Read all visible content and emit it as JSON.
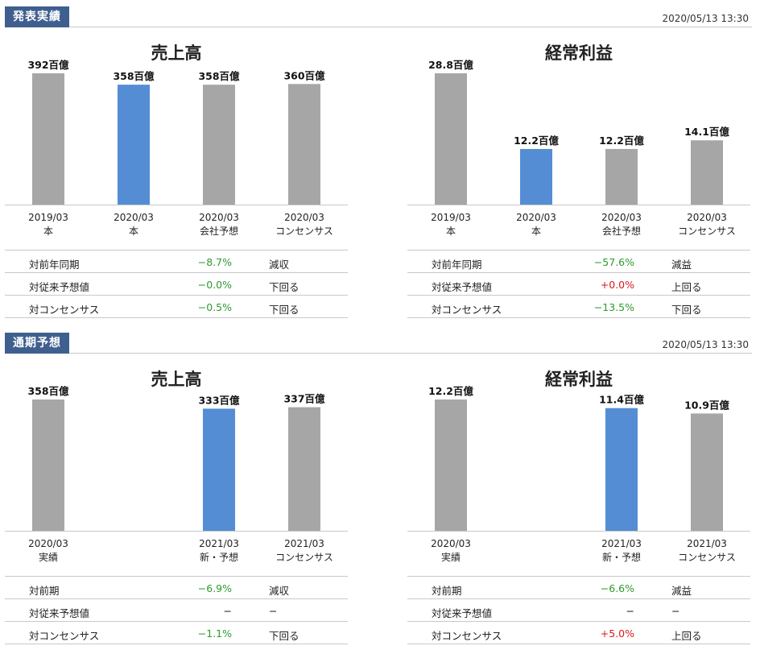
{
  "sections": [
    {
      "tag": "発表実績",
      "date": "2020/05/13 13:30",
      "panels": [
        {
          "title": "売上高",
          "unit": "百億",
          "metrics": [
            {
              "label": "対前年同期",
              "value": "−8.7%",
              "sign": "neg",
              "note": "減収"
            },
            {
              "label": "対従来予想値",
              "value": "−0.0%",
              "sign": "neg",
              "note": "下回る"
            },
            {
              "label": "対コンセンサス",
              "value": "−0.5%",
              "sign": "neg",
              "note": "下回る"
            }
          ]
        },
        {
          "title": "経常利益",
          "unit": "百億",
          "metrics": [
            {
              "label": "対前年同期",
              "value": "−57.6%",
              "sign": "neg",
              "note": "減益"
            },
            {
              "label": "対従来予想値",
              "value": "+0.0%",
              "sign": "pos",
              "note": "上回る"
            },
            {
              "label": "対コンセンサス",
              "value": "−13.5%",
              "sign": "neg",
              "note": "下回る"
            }
          ]
        }
      ]
    },
    {
      "tag": "通期予想",
      "date": "2020/05/13 13:30",
      "panels": [
        {
          "title": "売上高",
          "unit": "百億",
          "metrics": [
            {
              "label": "対前期",
              "value": "−6.9%",
              "sign": "neg",
              "note": "減収"
            },
            {
              "label": "対従来予想値",
              "value": "−",
              "sign": "neu",
              "note": "−"
            },
            {
              "label": "対コンセンサス",
              "value": "−1.1%",
              "sign": "neg",
              "note": "下回る"
            }
          ]
        },
        {
          "title": "経常利益",
          "unit": "百億",
          "metrics": [
            {
              "label": "対前期",
              "value": "−6.6%",
              "sign": "neg",
              "note": "減益"
            },
            {
              "label": "対従来予想値",
              "value": "−",
              "sign": "neu",
              "note": "−"
            },
            {
              "label": "対コンセンサス",
              "value": "+5.0%",
              "sign": "pos",
              "note": "上回る"
            }
          ]
        }
      ]
    }
  ],
  "colors": {
    "bar_gray": "#a6a6a6",
    "bar_blue": "#548dd4",
    "header_bg": "#3f5f8f",
    "negative": "#2e9a2e",
    "positive": "#d81b1b"
  },
  "chart_data": [
    {
      "type": "bar",
      "title": "売上高",
      "unit": "百億",
      "categories": [
        [
          "2019/03",
          "本"
        ],
        [
          "2020/03",
          "本"
        ],
        [
          "2020/03",
          "会社予想"
        ],
        [
          "2020/03",
          "コンセンサス"
        ]
      ],
      "values": [
        392,
        358,
        358,
        360
      ],
      "labels": [
        "392百億",
        "358百億",
        "358百億",
        "360百億"
      ],
      "highlight": [
        1
      ],
      "ylim": [
        0,
        392
      ],
      "grid": false
    },
    {
      "type": "bar",
      "title": "経常利益",
      "unit": "百億",
      "categories": [
        [
          "2019/03",
          "本"
        ],
        [
          "2020/03",
          "本"
        ],
        [
          "2020/03",
          "会社予想"
        ],
        [
          "2020/03",
          "コンセンサス"
        ]
      ],
      "values": [
        28.8,
        12.2,
        12.2,
        14.1
      ],
      "labels": [
        "28.8百億",
        "12.2百億",
        "12.2百億",
        "14.1百億"
      ],
      "highlight": [
        1
      ],
      "ylim": [
        0,
        28.8
      ],
      "grid": false
    },
    {
      "type": "bar",
      "title": "売上高",
      "unit": "百億",
      "categories": [
        [
          "2020/03",
          "実績"
        ],
        [
          "",
          ""
        ],
        [
          "2021/03",
          "新・予想"
        ],
        [
          "2021/03",
          "コンセンサス"
        ]
      ],
      "values": [
        358,
        null,
        333,
        337
      ],
      "labels": [
        "358百億",
        "",
        "333百億",
        "337百億"
      ],
      "highlight": [
        2
      ],
      "ylim": [
        0,
        358
      ],
      "grid": false
    },
    {
      "type": "bar",
      "title": "経常利益",
      "unit": "百億",
      "categories": [
        [
          "2020/03",
          "実績"
        ],
        [
          "",
          ""
        ],
        [
          "2021/03",
          "新・予想"
        ],
        [
          "2021/03",
          "コンセンサス"
        ]
      ],
      "values": [
        12.2,
        null,
        11.4,
        10.9
      ],
      "labels": [
        "12.2百億",
        "",
        "11.4百億",
        "10.9百億"
      ],
      "highlight": [
        2
      ],
      "ylim": [
        0,
        12.2
      ],
      "grid": false
    }
  ]
}
